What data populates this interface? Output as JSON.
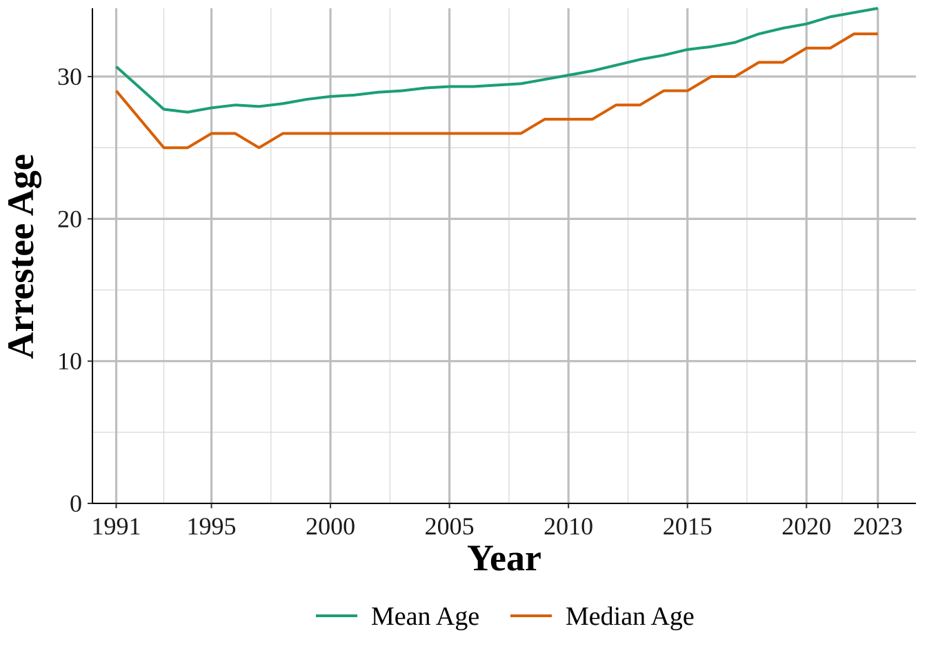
{
  "chart_data": {
    "type": "line",
    "xlabel": "Year",
    "ylabel": "Arrestee Age",
    "xlim": [
      1990,
      2024.6
    ],
    "ylim": [
      0,
      34.8
    ],
    "x_ticks": [
      1991,
      1995,
      2000,
      2005,
      2010,
      2015,
      2020,
      2023
    ],
    "y_ticks": [
      0,
      10,
      20,
      30
    ],
    "legend_position": "bottom",
    "grid": true,
    "x": [
      1991,
      1992,
      1993,
      1994,
      1995,
      1996,
      1997,
      1998,
      1999,
      2000,
      2001,
      2002,
      2003,
      2004,
      2005,
      2006,
      2007,
      2008,
      2009,
      2010,
      2011,
      2012,
      2013,
      2014,
      2015,
      2016,
      2017,
      2018,
      2019,
      2020,
      2021,
      2022,
      2023
    ],
    "series": [
      {
        "name": "Mean Age",
        "color": "#1b9e77",
        "values": [
          30.7,
          29.2,
          27.7,
          27.5,
          27.8,
          28.0,
          27.9,
          28.1,
          28.4,
          28.6,
          28.7,
          28.9,
          29.0,
          29.2,
          29.3,
          29.3,
          29.4,
          29.5,
          29.8,
          30.1,
          30.4,
          30.8,
          31.2,
          31.5,
          31.9,
          32.1,
          32.4,
          33.0,
          33.4,
          33.7,
          34.2,
          34.5,
          34.8
        ]
      },
      {
        "name": "Median Age",
        "color": "#d95f02",
        "values": [
          29,
          27,
          25,
          25,
          26,
          26,
          25,
          26,
          26,
          26,
          26,
          26,
          26,
          26,
          26,
          26,
          26,
          26,
          27,
          27,
          27,
          28,
          28,
          29,
          29,
          30,
          30,
          31,
          31,
          32,
          32,
          33,
          33
        ]
      }
    ]
  }
}
